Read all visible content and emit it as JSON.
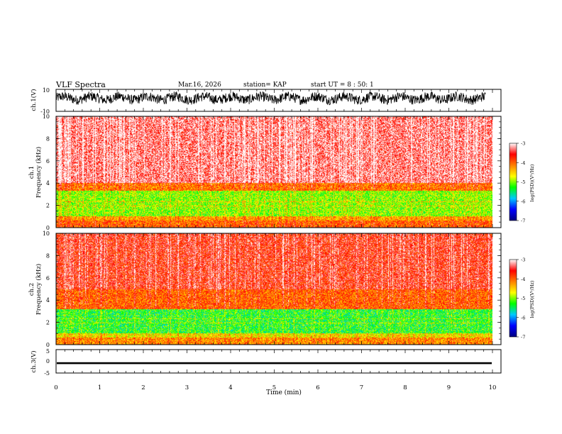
{
  "header": {
    "title": "VLF Spectra",
    "date": "Mar.16, 2026",
    "station": "station= KAP",
    "start": "start  UT =   8 : 50: 1"
  },
  "chart_data": [
    {
      "type": "line",
      "name": "ch1-waveform",
      "ylabel": "ch.1(V)",
      "ylim": [
        -10,
        10
      ],
      "yticks": [
        "10",
        "-10"
      ],
      "description_values": "noisy voltage waveform oscillating roughly between -3 and 7 V"
    },
    {
      "type": "heatmap",
      "name": "ch1-spectrogram",
      "ylabel": "ch.1\nFrequency (kHz)",
      "ylabel_lines": [
        "ch.1",
        "Frequency (kHz)"
      ],
      "ylim": [
        0,
        10
      ],
      "yticks": [
        "0",
        "2",
        "4",
        "6",
        "8",
        "10"
      ],
      "bands_khz": [
        {
          "from": 0.0,
          "to": 0.6,
          "level": -4.0
        },
        {
          "from": 0.6,
          "to": 1.0,
          "level": -4.3
        },
        {
          "from": 1.0,
          "to": 3.3,
          "level": -5.0
        },
        {
          "from": 3.3,
          "to": 4.0,
          "level": -4.1
        },
        {
          "from": 4.0,
          "to": 10.0,
          "level": -3.3
        }
      ]
    },
    {
      "type": "heatmap",
      "name": "ch2-spectrogram",
      "ylabel": "ch.2\nFrequency (kHz)",
      "ylabel_lines": [
        "ch.2",
        "Frequency (kHz)"
      ],
      "ylim": [
        0,
        10
      ],
      "yticks": [
        "0",
        "2",
        "4",
        "6",
        "8",
        "10"
      ],
      "bands_khz": [
        {
          "from": 0.0,
          "to": 0.6,
          "level": -4.2
        },
        {
          "from": 0.6,
          "to": 1.0,
          "level": -4.6
        },
        {
          "from": 1.0,
          "to": 3.2,
          "level": -5.3
        },
        {
          "from": 3.2,
          "to": 5.0,
          "level": -4.0
        },
        {
          "from": 5.0,
          "to": 10.0,
          "level": -3.6
        }
      ]
    },
    {
      "type": "line",
      "name": "ch3-waveform",
      "ylabel": "ch.3(V)",
      "ylim": [
        -5,
        5
      ],
      "yticks": [
        "5",
        "0",
        "-5"
      ],
      "value_band": [
        -1.2,
        -0.4
      ]
    }
  ],
  "x_axis": {
    "label": "Time (min)",
    "range": [
      0,
      10
    ],
    "ticks": [
      "0",
      "1",
      "2",
      "3",
      "4",
      "5",
      "6",
      "7",
      "8",
      "9",
      "10"
    ]
  },
  "colorbar": {
    "label": "log(PSD)(V²/Hz)",
    "range": [
      -7,
      -3
    ],
    "ticks": [
      "-3",
      "-4",
      "-5",
      "-6",
      "-7"
    ],
    "stops": [
      "#000080",
      "#0000ff",
      "#00c8ff",
      "#00ff00",
      "#ffff00",
      "#ff8000",
      "#ff0000",
      "#ffffff"
    ]
  }
}
